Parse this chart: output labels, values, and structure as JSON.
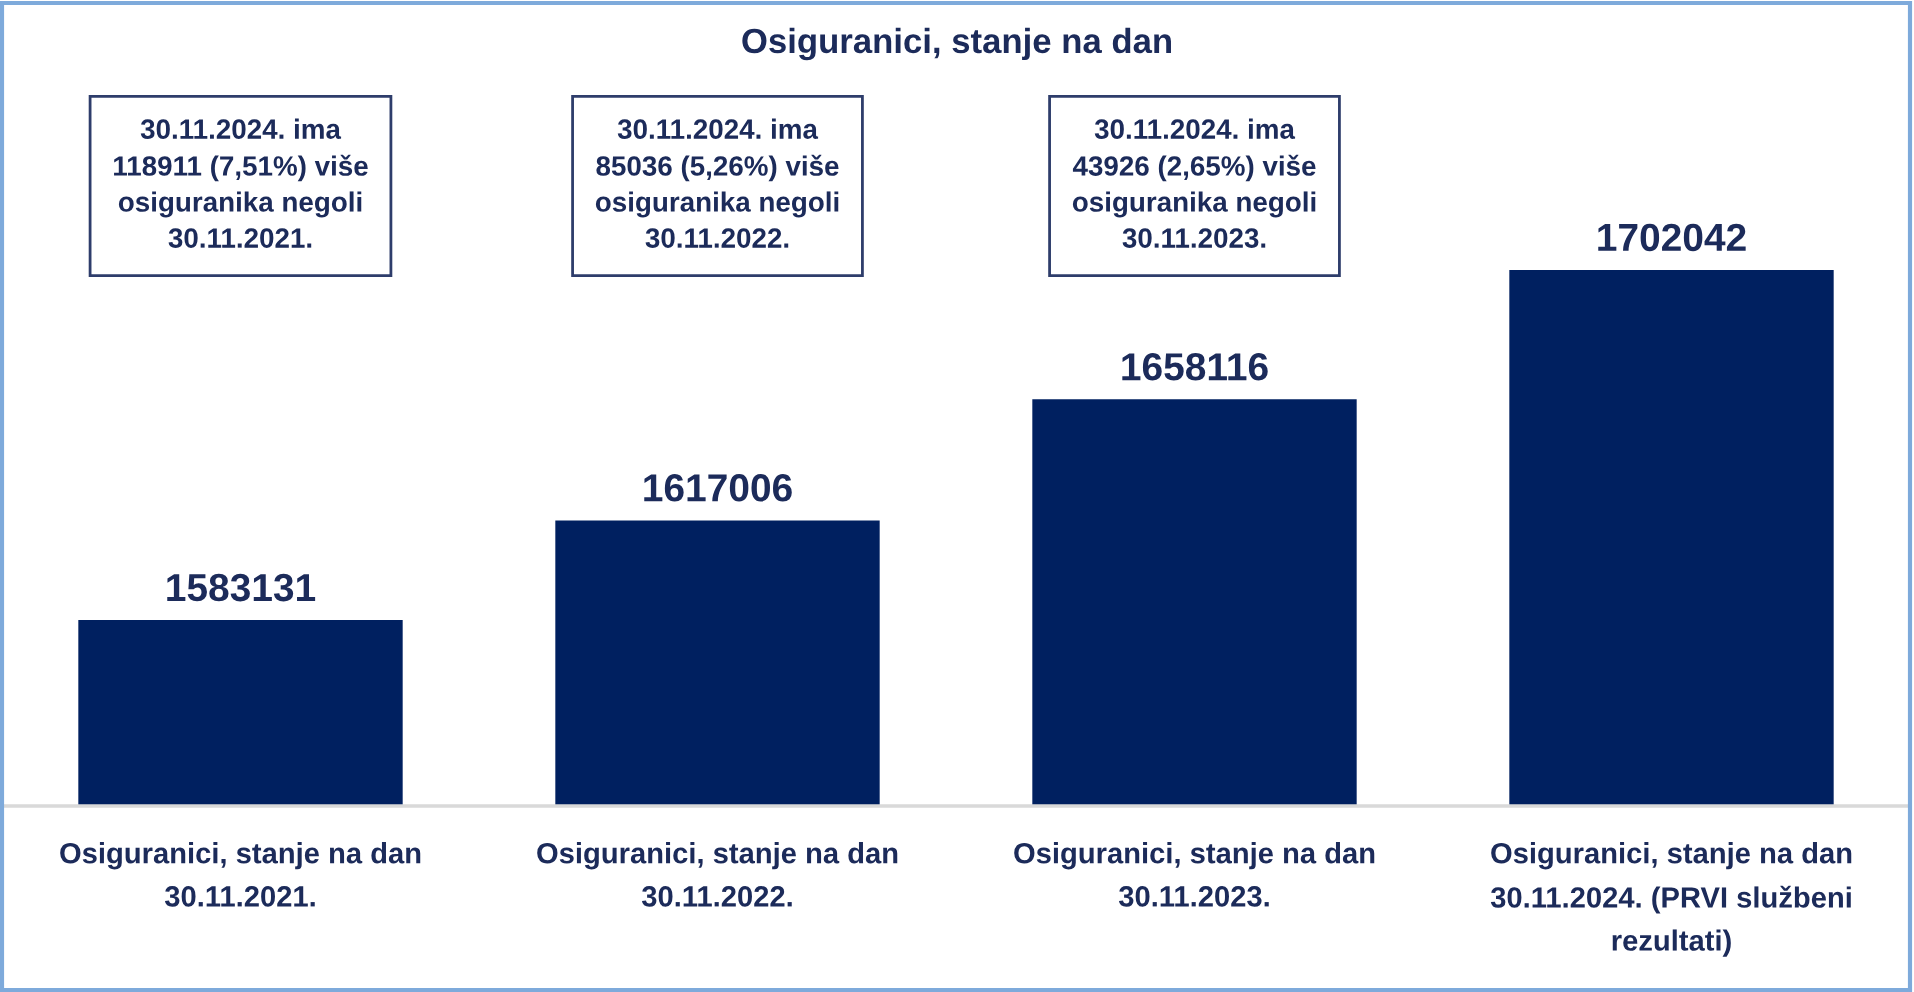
{
  "chart_data": {
    "type": "bar",
    "title": "Osiguranici, stanje na dan",
    "categories": [
      "Osiguranici, stanje na dan\n30.11.2021.",
      "Osiguranici, stanje na dan\n30.11.2022.",
      "Osiguranici, stanje na dan\n30.11.2023.",
      "Osiguranici, stanje na dan\n30.11.2024. (PRVI službeni\nrezultati)"
    ],
    "values": [
      1583131,
      1617006,
      1658116,
      1702042
    ],
    "color": "#002060",
    "ylim": [
      1520000,
      1702042
    ],
    "tick_labels": "x",
    "data_labels": true,
    "annotations": [
      "30.11.2024. ima\n118911 (7,51%) više\nosiguranika negoli\n30.11.2021.",
      "30.11.2024. ima\n85036 (5,26%) više\nosiguranika negoli\n30.11.2022.",
      "30.11.2024. ima\n43926 (2,65%) više\nosiguranika negoli\n30.11.2023."
    ]
  }
}
